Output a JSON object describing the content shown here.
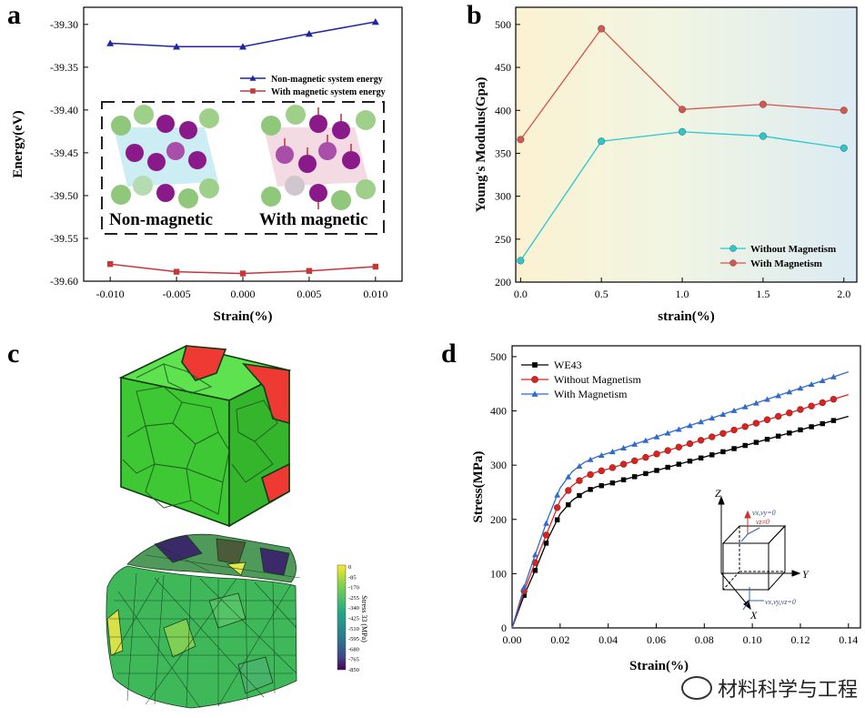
{
  "chart_data": [
    {
      "panel": "a",
      "type": "line",
      "xlabel": "Strain(%)",
      "ylabel": "Energy(eV)",
      "x": [
        -0.01,
        -0.005,
        0.0,
        0.005,
        0.01
      ],
      "x_tick_labels": [
        "-0.010",
        "-0.005",
        "0.000",
        "0.005",
        "0.010"
      ],
      "ylim": [
        -39.6,
        -39.28
      ],
      "y_ticks": [
        -39.3,
        -39.35,
        -39.4,
        -39.45,
        -39.5,
        -39.55,
        -39.6
      ],
      "y_tick_labels": [
        "-39.30",
        "-39.35",
        "-39.40",
        "-39.45",
        "-39.50",
        "-39.55",
        "-39.60"
      ],
      "series": [
        {
          "name": "Non-magnetic system energy",
          "color": "#1f24a8",
          "marker": "triangle",
          "values": [
            -39.322,
            -39.326,
            -39.326,
            -39.311,
            -39.297
          ]
        },
        {
          "name": "With magnetic system energy",
          "color": "#c8363a",
          "marker": "square",
          "values": [
            -39.58,
            -39.589,
            -39.591,
            -39.588,
            -39.583
          ]
        }
      ],
      "inset_labels": [
        "Non-magnetic",
        "With magnetic"
      ],
      "legend": "upper-right"
    },
    {
      "panel": "b",
      "type": "line",
      "xlabel": "strain(%)",
      "ylabel": "Young's Modulus(Gpa)",
      "x": [
        0.0,
        0.5,
        1.0,
        1.5,
        2.0
      ],
      "x_tick_labels": [
        "0.0",
        "0.5",
        "1.0",
        "1.5",
        "2.0"
      ],
      "ylim": [
        200,
        520
      ],
      "y_ticks": [
        200,
        250,
        300,
        350,
        400,
        450,
        500
      ],
      "series": [
        {
          "name": "Without Magnetism",
          "color": "#27c9cf",
          "values": [
            225,
            364,
            375,
            370,
            356
          ]
        },
        {
          "name": "With Magnetism",
          "color": "#d5554f",
          "values": [
            366,
            495,
            401,
            407,
            400
          ]
        }
      ],
      "legend": "lower-right"
    },
    {
      "panel": "d",
      "type": "line",
      "xlabel": "Strain(%)",
      "ylabel": "Stress(MPa)",
      "xlim": [
        0,
        0.145
      ],
      "ylim": [
        0,
        520
      ],
      "x_ticks": [
        0.0,
        0.02,
        0.04,
        0.06,
        0.08,
        0.1,
        0.12,
        0.14
      ],
      "x_tick_labels": [
        "0.00",
        "0.02",
        "0.04",
        "0.06",
        "0.08",
        "0.10",
        "0.12",
        "0.14"
      ],
      "y_ticks": [
        0,
        100,
        200,
        300,
        400,
        500
      ],
      "series": [
        {
          "name": "WE43",
          "color": "#000000",
          "marker": "square",
          "points": [
            [
              0,
              0
            ],
            [
              0.005,
              60
            ],
            [
              0.01,
              110
            ],
            [
              0.015,
              165
            ],
            [
              0.02,
              210
            ],
            [
              0.025,
              235
            ],
            [
              0.03,
              250
            ],
            [
              0.035,
              260
            ],
            [
              0.04,
              265
            ],
            [
              0.14,
              390
            ]
          ]
        },
        {
          "name": "Without Magnetism",
          "color": "#e0201c",
          "marker": "circle",
          "points": [
            [
              0,
              0
            ],
            [
              0.005,
              68
            ],
            [
              0.01,
              125
            ],
            [
              0.015,
              180
            ],
            [
              0.02,
              235
            ],
            [
              0.025,
              262
            ],
            [
              0.03,
              278
            ],
            [
              0.035,
              287
            ],
            [
              0.04,
              293
            ],
            [
              0.14,
              430
            ]
          ]
        },
        {
          "name": "With Magnetism",
          "color": "#2f6bcb",
          "marker": "triangle",
          "points": [
            [
              0,
              0
            ],
            [
              0.005,
              75
            ],
            [
              0.01,
              140
            ],
            [
              0.015,
              203
            ],
            [
              0.02,
              258
            ],
            [
              0.025,
              288
            ],
            [
              0.03,
              305
            ],
            [
              0.035,
              315
            ],
            [
              0.04,
              322
            ],
            [
              0.14,
              472
            ]
          ]
        }
      ],
      "inset_labels": {
        "z": "Z",
        "y": "Y",
        "x": "X",
        "bc_top": "vx,vy=0",
        "bc_top2": "vz≠0",
        "bc_bottom": "vx,vy,vz=0"
      },
      "legend": "upper-left"
    }
  ],
  "panels": {
    "a": "a",
    "b": "b",
    "c": "c",
    "d": "d"
  },
  "colorbar": {
    "title": "Stress 33 (MPa)",
    "labels": [
      "0",
      "-85",
      "-170",
      "-255",
      "-340",
      "-425",
      "-510",
      "-595",
      "-680",
      "-765",
      "-850"
    ]
  },
  "watermark": "材料科学与工程",
  "colors": {
    "green_grain": "#44d13a",
    "red_grain": "#ef3a34"
  }
}
